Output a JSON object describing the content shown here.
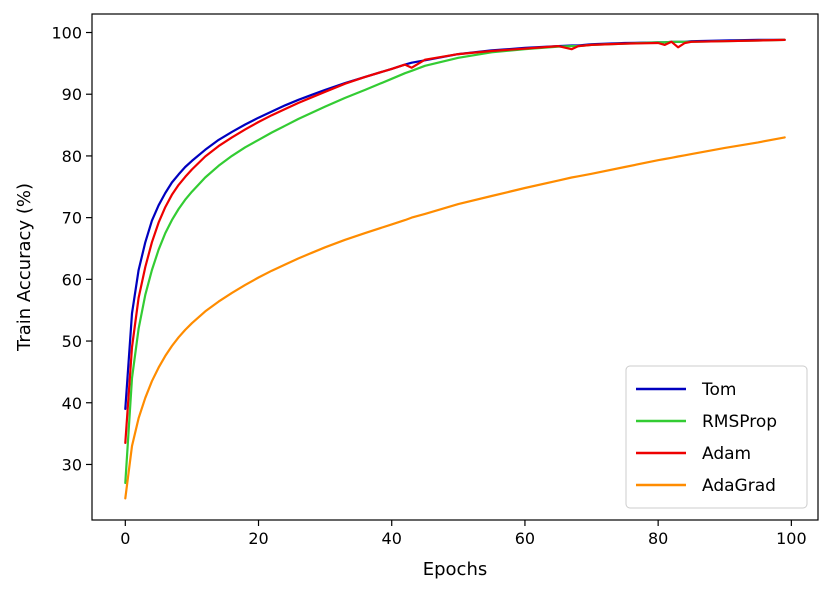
{
  "chart_data": {
    "type": "line",
    "title": "",
    "xlabel": "Epochs",
    "ylabel": "Train Accuracy (%)",
    "xlim": [
      -5,
      104
    ],
    "ylim": [
      21,
      103
    ],
    "xticks": [
      0,
      20,
      40,
      60,
      80,
      100
    ],
    "yticks": [
      30,
      40,
      50,
      60,
      70,
      80,
      90,
      100
    ],
    "grid": false,
    "legend_position": "lower-right",
    "x": [
      0,
      1,
      2,
      3,
      4,
      5,
      6,
      7,
      8,
      9,
      10,
      12,
      14,
      16,
      18,
      20,
      22,
      24,
      26,
      28,
      30,
      33,
      36,
      40,
      42,
      43,
      45,
      50,
      55,
      60,
      65,
      67,
      68,
      70,
      75,
      80,
      81,
      82,
      83,
      84,
      85,
      90,
      95,
      99
    ],
    "series": [
      {
        "name": "Tom",
        "color": "#0000bf",
        "values": [
          39.0,
          54.5,
          61.5,
          66.0,
          69.5,
          72.0,
          74.0,
          75.7,
          77.0,
          78.2,
          79.2,
          81.0,
          82.6,
          83.9,
          85.1,
          86.2,
          87.2,
          88.2,
          89.1,
          89.9,
          90.7,
          91.8,
          92.8,
          94.1,
          94.8,
          95.1,
          95.5,
          96.5,
          97.1,
          97.5,
          97.8,
          97.9,
          97.9,
          98.1,
          98.3,
          98.4,
          98.4,
          98.5,
          98.5,
          98.5,
          98.6,
          98.7,
          98.8,
          98.8
        ]
      },
      {
        "name": "RMSProp",
        "color": "#33cc33",
        "values": [
          27.0,
          44.0,
          52.0,
          57.5,
          61.5,
          64.8,
          67.5,
          69.6,
          71.4,
          72.9,
          74.2,
          76.5,
          78.4,
          80.0,
          81.4,
          82.6,
          83.8,
          84.9,
          86.0,
          87.0,
          88.0,
          89.4,
          90.7,
          92.5,
          93.4,
          93.8,
          94.6,
          95.9,
          96.8,
          97.3,
          97.7,
          97.8,
          97.8,
          98.0,
          98.2,
          98.4,
          98.4,
          98.5,
          98.5,
          98.5,
          98.5,
          98.6,
          98.7,
          98.8
        ]
      },
      {
        "name": "Adam",
        "color": "#ee0000",
        "values": [
          33.5,
          49.0,
          57.0,
          62.0,
          66.0,
          69.2,
          71.7,
          73.7,
          75.3,
          76.6,
          77.8,
          79.9,
          81.6,
          83.0,
          84.3,
          85.5,
          86.6,
          87.6,
          88.6,
          89.5,
          90.4,
          91.7,
          92.8,
          94.1,
          94.8,
          94.3,
          95.6,
          96.5,
          97.0,
          97.4,
          97.8,
          97.3,
          97.8,
          98.0,
          98.2,
          98.3,
          98.0,
          98.5,
          97.6,
          98.3,
          98.5,
          98.6,
          98.7,
          98.8
        ]
      },
      {
        "name": "AdaGrad",
        "color": "#ff8c00",
        "values": [
          24.5,
          33.0,
          37.5,
          40.8,
          43.5,
          45.7,
          47.6,
          49.2,
          50.6,
          51.8,
          52.9,
          54.8,
          56.4,
          57.8,
          59.1,
          60.3,
          61.4,
          62.4,
          63.4,
          64.3,
          65.2,
          66.4,
          67.5,
          68.9,
          69.6,
          70.0,
          70.6,
          72.2,
          73.5,
          74.8,
          76.0,
          76.5,
          76.7,
          77.1,
          78.2,
          79.3,
          79.5,
          79.7,
          79.9,
          80.1,
          80.3,
          81.3,
          82.2,
          83.0
        ]
      }
    ]
  }
}
